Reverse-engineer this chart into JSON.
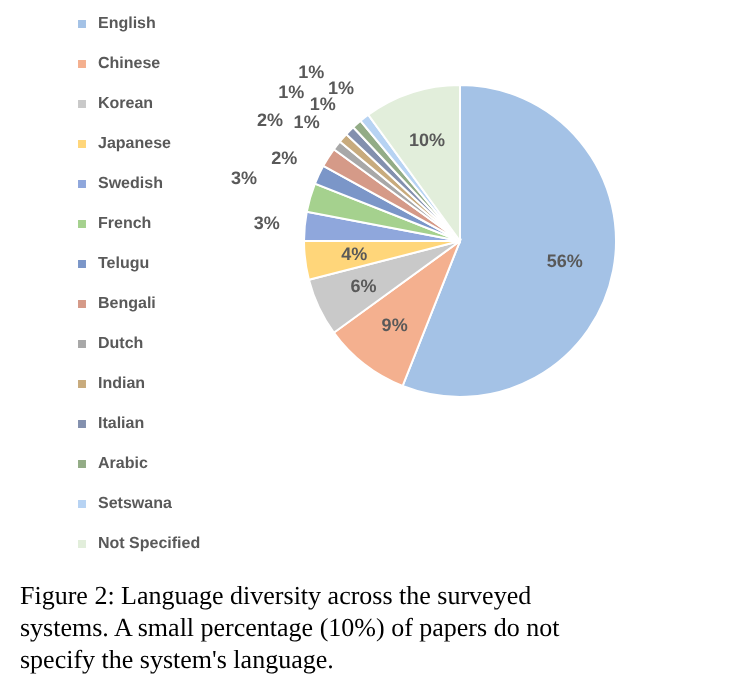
{
  "chart_data": {
    "type": "pie",
    "categories": [
      "English",
      "Chinese",
      "Korean",
      "Japanese",
      "Swedish",
      "French",
      "Telugu",
      "Bengali",
      "Dutch",
      "Indian",
      "Italian",
      "Arabic",
      "Setswana",
      "Not Specified"
    ],
    "values": [
      56,
      9,
      6,
      4,
      3,
      3,
      2,
      2,
      1,
      1,
      1,
      1,
      1,
      10
    ],
    "value_labels": [
      "56%",
      "9%",
      "6%",
      "4%",
      "3%",
      "3%",
      "2%",
      "2%",
      "1%",
      "1%",
      "1%",
      "1%",
      "1%",
      "10%"
    ],
    "colors": [
      "#a4c2e6",
      "#f4b08f",
      "#c9c9c9",
      "#ffd67a",
      "#8fa7dc",
      "#a5d18e",
      "#7b96c8",
      "#d59a88",
      "#a8a8a8",
      "#c8ab7d",
      "#8390ae",
      "#93ac86",
      "#b7d3f3",
      "#e2eedb"
    ],
    "legend": "left",
    "annotations": [
      "Figure 2: Language diversity across the surveyed systems. A small percentage (10%) of papers do not specify the system's language."
    ]
  }
}
